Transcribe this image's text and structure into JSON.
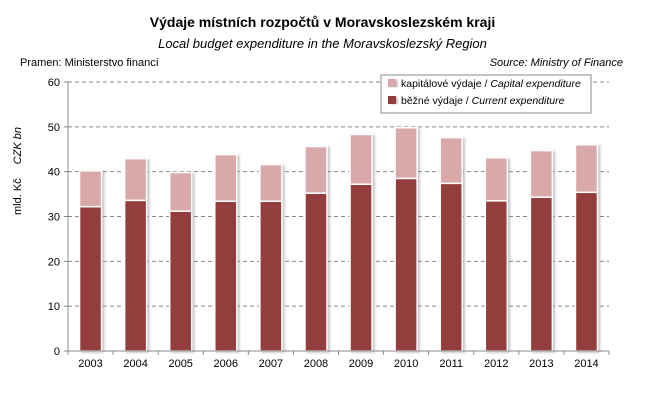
{
  "chart_data": {
    "type": "bar",
    "stacked": true,
    "title": "Výdaje místních rozpočtů v Moravskoslezském kraji",
    "subtitle": "Local budget expenditure in the Moravskoslezský Region",
    "source_left": "Pramen: Ministerstvo financí",
    "source_right": "Source: Ministry of Finance",
    "ylabel": "mld. Kč",
    "ylabel_en": "CZK bn",
    "ylim": [
      0,
      60
    ],
    "yticks": [
      0,
      10,
      20,
      30,
      40,
      50,
      60
    ],
    "grid": true,
    "legend_position": "top-right",
    "categories": [
      "2003",
      "2004",
      "2005",
      "2006",
      "2007",
      "2008",
      "2009",
      "2010",
      "2011",
      "2012",
      "2013",
      "2014"
    ],
    "series": [
      {
        "name": "běžné výdaje",
        "name_en": "Current expenditure",
        "color": "#943c3c",
        "values": [
          32.2,
          33.6,
          31.2,
          33.4,
          33.4,
          35.2,
          37.2,
          38.5,
          37.4,
          33.5,
          34.3,
          35.4
        ]
      },
      {
        "name": "kapitálové výdaje",
        "name_en": "Capital expenditure",
        "color": "#d9a9a9",
        "values": [
          8.0,
          9.3,
          8.6,
          10.4,
          8.2,
          10.4,
          11.1,
          11.3,
          10.2,
          9.6,
          10.4,
          10.6
        ]
      }
    ]
  }
}
